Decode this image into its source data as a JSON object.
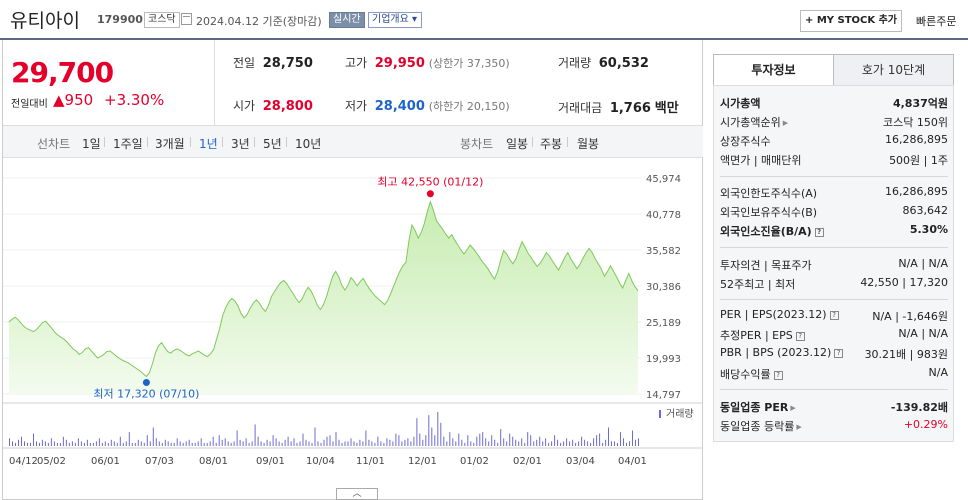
{
  "header": {
    "stock_name": "유티아이",
    "stock_code": "179900",
    "market": "코스닥",
    "date_text": "2024.04.12  기준(장마감)",
    "live_label": "실시간",
    "company_info_label": "기업개요",
    "my_stock_label": "+ MY STOCK 추가",
    "quick_order_label": "빠른주문"
  },
  "price": {
    "current": "29,700",
    "change_label": "전일대비",
    "change_amount": "▲950",
    "change_pct": "+3.30%"
  },
  "quote": {
    "prev_label": "전일",
    "prev_value": "28,750",
    "high_label": "고가",
    "high_value": "29,950",
    "upper_limit": "(상한가 37,350)",
    "volume_label": "거래량",
    "volume_value": "60,532",
    "open_label": "시가",
    "open_value": "28,800",
    "low_label": "저가",
    "low_value": "28,400",
    "lower_limit": "(하한가 20,150)",
    "amount_label": "거래대금",
    "amount_value": "1,766",
    "amount_unit": "백만"
  },
  "periods": {
    "line_label": "선차트",
    "line_items": [
      "1일",
      "1주일",
      "3개월",
      "1년",
      "3년",
      "5년",
      "10년"
    ],
    "selected": "1년",
    "candle_label": "봉차트",
    "candle_items": [
      "일봉",
      "주봉",
      "월봉"
    ]
  },
  "chart_data": {
    "type": "area",
    "y_ticks": [
      "45,974",
      "40,778",
      "35,582",
      "30,386",
      "25,189",
      "19,993",
      "14,797"
    ],
    "ylim": [
      14797,
      45974
    ],
    "x_ticks": [
      "04/12",
      "05/02",
      "06/01",
      "07/03",
      "08/01",
      "09/01",
      "10/04",
      "11/01",
      "12/01",
      "01/02",
      "02/01",
      "03/04",
      "04/01"
    ],
    "high_label": "최고 42,550 (01/12)",
    "low_label": "최저 17,320 (07/10)",
    "volume_label": "거래량",
    "colors": {
      "fill": "#c7ecb0",
      "line": "#7ec95a",
      "high": "#e4002b",
      "low": "#1d64c8"
    },
    "series": [
      {
        "values": [
          25200,
          25600,
          25900,
          25500,
          25000,
          24500,
          24200,
          24000,
          23800,
          24100,
          24600,
          25100,
          25300,
          24800,
          24300,
          23700,
          23300,
          23000,
          22700,
          22300,
          21800,
          21300,
          21000,
          20500,
          20800,
          21300,
          21500,
          21000,
          20500,
          20000,
          20200,
          20500,
          20900,
          21000,
          20700,
          20300,
          20000,
          19700,
          19500,
          19300,
          19000,
          18700,
          18400,
          18100,
          17700,
          17320,
          17900,
          19200,
          20800,
          21800,
          22200,
          21500,
          20900,
          20700,
          21100,
          21300,
          21100,
          20800,
          20500,
          20300,
          20600,
          20800,
          21000,
          20700,
          20400,
          20200,
          20600,
          21200,
          22700,
          24300,
          26100,
          27300,
          28100,
          28600,
          28200,
          27500,
          26400,
          25800,
          26300,
          27200,
          27900,
          28400,
          27900,
          27200,
          26700,
          27600,
          28900,
          29600,
          30300,
          30900,
          31200,
          30700,
          30000,
          29300,
          28600,
          28000,
          28500,
          29500,
          30200,
          29600,
          28700,
          27600,
          27000,
          27700,
          28900,
          30400,
          31800,
          32500,
          31700,
          30500,
          29800,
          30500,
          31600,
          31100,
          30400,
          31000,
          31500,
          30700,
          30000,
          29400,
          28900,
          28500,
          28100,
          27700,
          28300,
          29300,
          30400,
          31500,
          32500,
          33300,
          33800,
          37000,
          39200,
          38400,
          37300,
          38100,
          39400,
          41100,
          42550,
          41300,
          39800,
          39200,
          38600,
          37900,
          37300,
          37800,
          37000,
          36300,
          35600,
          35000,
          35600,
          36300,
          35800,
          35200,
          34600,
          33900,
          33400,
          32800,
          32000,
          31400,
          32400,
          34100,
          35500,
          35000,
          34200,
          33600,
          34300,
          35600,
          36800,
          36000,
          35100,
          34500,
          33800,
          33200,
          33700,
          34400,
          35200,
          34700,
          34000,
          33300,
          32700,
          33600,
          34500,
          35200,
          34300,
          33600,
          32900,
          33500,
          34400,
          35200,
          35800,
          35200,
          34300,
          33600,
          32800,
          31800,
          32500,
          33300,
          32500,
          31700,
          30800,
          30100,
          31200,
          32200,
          31100,
          30300,
          29700
        ]
      }
    ],
    "volume": [
      5,
      3,
      2,
      4,
      6,
      3,
      2,
      2,
      8,
      3,
      2,
      4,
      3,
      2,
      5,
      3,
      2,
      2,
      6,
      4,
      2,
      3,
      2,
      5,
      3,
      2,
      4,
      2,
      2,
      3,
      5,
      2,
      3,
      2,
      4,
      3,
      2,
      6,
      2,
      3,
      9,
      2,
      2,
      4,
      3,
      2,
      7,
      3,
      12,
      5,
      3,
      2,
      4,
      3,
      2,
      2,
      5,
      3,
      2,
      3,
      4,
      2,
      2,
      3,
      5,
      2,
      2,
      3,
      6,
      2,
      7,
      4,
      5,
      3,
      2,
      3,
      10,
      4,
      3,
      5,
      2,
      3,
      14,
      6,
      3,
      2,
      4,
      3,
      7,
      5,
      3,
      2,
      4,
      6,
      3,
      5,
      2,
      3,
      8,
      4,
      3,
      2,
      12,
      3,
      2,
      4,
      6,
      7,
      3,
      9,
      4,
      2,
      3,
      3,
      5,
      3,
      2,
      4,
      3,
      10,
      4,
      3,
      2,
      6,
      3,
      2,
      5,
      4,
      3,
      8,
      7,
      3,
      4,
      5,
      3,
      6,
      18,
      8,
      4,
      7,
      20,
      12,
      7,
      22,
      15,
      6,
      3,
      9,
      5,
      3,
      8,
      4,
      2,
      7,
      3,
      2,
      6,
      8,
      9,
      5,
      3,
      7,
      4,
      2,
      11,
      5,
      3,
      8,
      6,
      4,
      3,
      5,
      2,
      9,
      7,
      3,
      4,
      6,
      3,
      5,
      2,
      3,
      7,
      4,
      2,
      3,
      5,
      3,
      4,
      2,
      3,
      6,
      4,
      3,
      2,
      5,
      7,
      8,
      2,
      4,
      12,
      3,
      3,
      2,
      9,
      5,
      2,
      3,
      10,
      4,
      5
    ]
  },
  "invest_info": {
    "tab_active": "투자정보",
    "tab_other": "호가 10단계",
    "market_cap_label": "시가총액",
    "market_cap_value": "4,837억원",
    "market_cap_rank_label": "시가총액순위",
    "market_cap_rank_value": "코스닥 150위",
    "shares_label": "상장주식수",
    "shares_value": "16,286,895",
    "par_label": "액면가 | 매매단위",
    "par_value": "500원 | 1주",
    "foreign_limit_label": "외국인한도주식수(A)",
    "foreign_limit_value": "16,286,895",
    "foreign_hold_label": "외국인보유주식수(B)",
    "foreign_hold_value": "863,642",
    "foreign_ratio_label": "외국인소진율(B/A)",
    "foreign_ratio_value": "5.30%",
    "opinion_label": "투자의견 | 목표주가",
    "opinion_value": "N/A | N/A",
    "w52_label": "52주최고 | 최저",
    "w52_value": "42,550 | 17,320",
    "per_label": "PER | EPS(2023.12)",
    "per_value": "N/A | -1,646원",
    "est_per_label": "추정PER | EPS",
    "est_per_value": "N/A | N/A",
    "pbr_label": "PBR | BPS (2023.12)",
    "pbr_value": "30.21배 | 983원",
    "div_label": "배당수익률",
    "div_value": "N/A",
    "industry_per_label": "동일업종 PER",
    "industry_per_value": "-139.82배",
    "industry_rate_label": "동일업종 등락률",
    "industry_rate_value": "+0.29%"
  }
}
